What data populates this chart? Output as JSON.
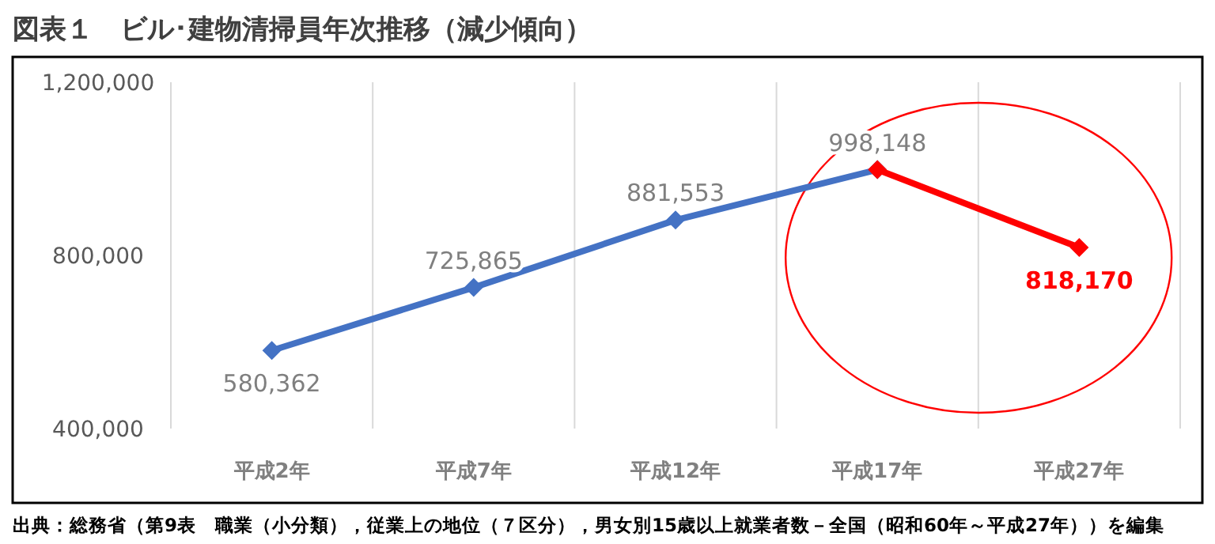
{
  "chart_data": {
    "type": "line",
    "title": "図表１　ビル･建物清掃員年次推移（減少傾向）",
    "categories": [
      "平成2年",
      "平成7年",
      "平成12年",
      "平成17年",
      "平成27年"
    ],
    "series": [
      {
        "color": "#4472c4",
        "values": [
          580362,
          725865,
          881553,
          998148,
          null
        ],
        "value_labels": [
          "580,362",
          "725,865",
          "881,553",
          "998,148",
          null
        ]
      },
      {
        "color": "#ff0000",
        "values": [
          null,
          null,
          null,
          998148,
          818170
        ],
        "value_labels": [
          null,
          null,
          null,
          null,
          "818,170"
        ]
      }
    ],
    "ylim": [
      400000,
      1200000
    ],
    "yticks": [
      {
        "value": 400000,
        "label": "400,000"
      },
      {
        "value": 800000,
        "label": "800,000"
      },
      {
        "value": 1200000,
        "label": "1,200,000"
      }
    ],
    "grid": "x",
    "marker": "diamond",
    "line_style": "solid",
    "annotations": [
      "出典：総務省（第9表　職業（小分類），従業上の地位（７区分），男女別15歳以上就業者数－全国（昭和60年～平成27年））を編集"
    ]
  }
}
